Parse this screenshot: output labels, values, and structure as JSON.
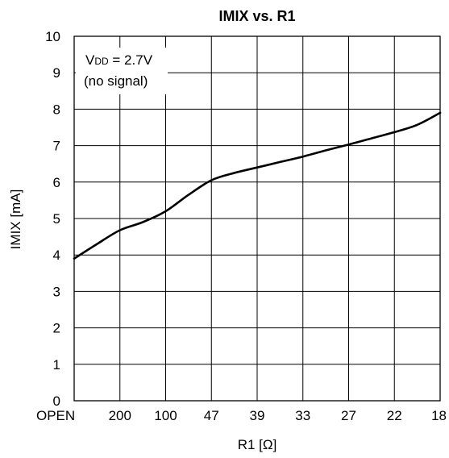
{
  "chart_data": {
    "type": "line",
    "title": "IMIX vs. R1",
    "xlabel": "R1 [Ω]",
    "ylabel": "IMIX [mA]",
    "categories": [
      "OPEN",
      "200",
      "100",
      "47",
      "39",
      "33",
      "27",
      "22",
      "18"
    ],
    "ylim": [
      0,
      10
    ],
    "yticks": [
      "0",
      "1",
      "2",
      "3",
      "4",
      "5",
      "6",
      "7",
      "8",
      "9",
      "10"
    ],
    "grid": true,
    "annotation": {
      "prefix": "V",
      "subscript": "DD",
      "value": " = 2.7V",
      "line2": "(no signal)"
    },
    "series": [
      {
        "x": [
          0,
          0.5,
          1,
          1.5,
          2,
          2.5,
          3,
          3.5,
          4,
          4.5,
          5,
          5.5,
          6,
          6.5,
          7,
          7.5,
          8
        ],
        "values": [
          3.9,
          4.3,
          4.68,
          4.9,
          5.2,
          5.65,
          6.05,
          6.25,
          6.4,
          6.55,
          6.7,
          6.87,
          7.03,
          7.2,
          7.37,
          7.57,
          7.9
        ]
      }
    ]
  }
}
